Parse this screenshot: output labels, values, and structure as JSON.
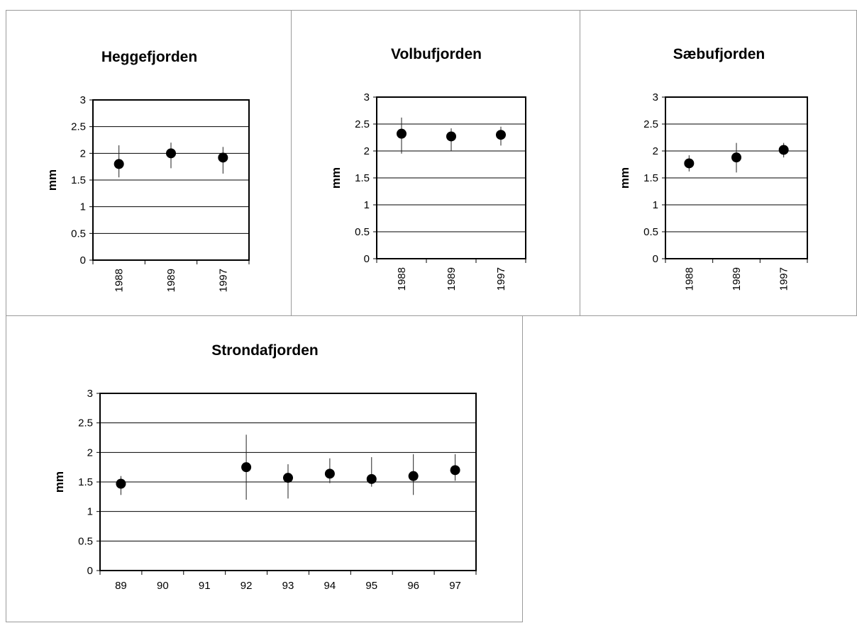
{
  "chart_data": [
    {
      "type": "scatter",
      "title": "Heggefjorden",
      "ylabel": "mm",
      "xlabel": "",
      "ylim": [
        0,
        3
      ],
      "yticks": [
        "0",
        "0.5",
        "1",
        "1.5",
        "2",
        "2.5",
        "3"
      ],
      "categories": [
        "1988",
        "1989",
        "1997"
      ],
      "values": [
        1.8,
        2.0,
        1.92
      ],
      "error_low": [
        1.55,
        1.72,
        1.62
      ],
      "error_high": [
        2.15,
        2.2,
        2.12
      ],
      "grid": true,
      "legend": "none"
    },
    {
      "type": "scatter",
      "title": "Volbufjorden",
      "ylabel": "mm",
      "xlabel": "",
      "ylim": [
        0,
        3
      ],
      "yticks": [
        "0",
        "0.5",
        "1",
        "1.5",
        "2",
        "2.5",
        "3"
      ],
      "categories": [
        "1988",
        "1989",
        "1997"
      ],
      "values": [
        2.32,
        2.27,
        2.3
      ],
      "error_low": [
        1.95,
        2.0,
        2.1
      ],
      "error_high": [
        2.62,
        2.42,
        2.45
      ],
      "grid": true,
      "legend": "none"
    },
    {
      "type": "scatter",
      "title": "Sæbufjorden",
      "ylabel": "mm",
      "xlabel": "",
      "ylim": [
        0,
        3
      ],
      "yticks": [
        "0",
        "0.5",
        "1",
        "1.5",
        "2",
        "2.5",
        "3"
      ],
      "categories": [
        "1988",
        "1989",
        "1997"
      ],
      "values": [
        1.77,
        1.88,
        2.02
      ],
      "error_low": [
        1.62,
        1.6,
        1.88
      ],
      "error_high": [
        1.92,
        2.15,
        2.15
      ],
      "grid": true,
      "legend": "none"
    },
    {
      "type": "scatter",
      "title": "Strondafjorden",
      "ylabel": "mm",
      "xlabel": "",
      "ylim": [
        0,
        3
      ],
      "yticks": [
        "0",
        "0.5",
        "1",
        "1.5",
        "2",
        "2.5",
        "3"
      ],
      "categories": [
        "89",
        "90",
        "91",
        "92",
        "93",
        "94",
        "95",
        "96",
        "97"
      ],
      "values": [
        1.47,
        null,
        null,
        1.75,
        1.57,
        1.64,
        1.55,
        1.6,
        1.7
      ],
      "error_low": [
        1.28,
        null,
        null,
        1.2,
        1.22,
        1.48,
        1.42,
        1.28,
        1.52
      ],
      "error_high": [
        1.6,
        null,
        null,
        2.3,
        1.8,
        1.9,
        1.92,
        1.97,
        1.97
      ],
      "grid": true,
      "legend": "none"
    }
  ]
}
